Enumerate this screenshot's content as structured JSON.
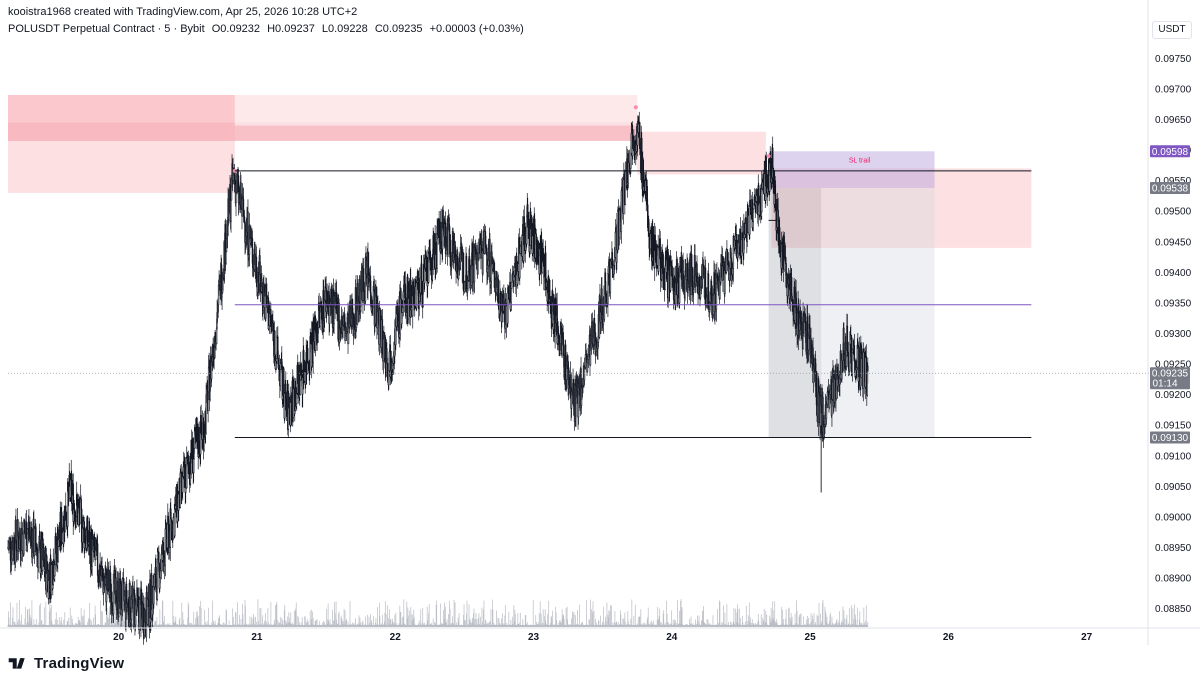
{
  "header": {
    "credit": "kooistra1968 created with TradingView.com, Apr 25, 2026 10:28 UTC+2",
    "symbol": "POLUSDT Perpetual Contract · 5 · Bybit",
    "open": "O0.09232",
    "high": "H0.09237",
    "low": "L0.09228",
    "close": "C0.09235",
    "change": "+0.00003 (+0.03%)"
  },
  "currency": "USDT",
  "brand": "TradingView",
  "colors": {
    "candle": "#131722",
    "supply_zone": "#f7b6bd",
    "supply_zone_light": "#fbdadd",
    "mid_line": "#7e57c2",
    "level_line": "#131722",
    "purple_badge": "#7e57c2",
    "gray_badge": "#787b86",
    "position_dark": "#9598a1",
    "position_light": "#d1d4dc"
  },
  "chart_data": {
    "type": "candlestick",
    "y_ticks": [
      0.0975,
      0.097,
      0.0965,
      0.096,
      0.0955,
      0.095,
      0.0945,
      0.094,
      0.0935,
      0.093,
      0.0925,
      0.092,
      0.0915,
      0.091,
      0.0905,
      0.09,
      0.0895,
      0.089,
      0.0885
    ],
    "y_tick_labels": [
      "0.09750",
      "0.09700",
      "0.09650",
      "0.09600",
      "0.09550",
      "0.09500",
      "0.09450",
      "0.09400",
      "0.09350",
      "0.09300",
      "0.09250",
      "0.09200",
      "0.09150",
      "0.09100",
      "0.09050",
      "0.09000",
      "0.08950",
      "0.08900",
      "0.08850"
    ],
    "ylim": [
      0.0882,
      0.0978
    ],
    "x_ticks": [
      "20",
      "21",
      "22",
      "23",
      "24",
      "25",
      "26",
      "27"
    ],
    "x_range_days": [
      19.2,
      27.4
    ],
    "price_path": [
      [
        19.2,
        0.0895
      ],
      [
        19.35,
        0.0898
      ],
      [
        19.5,
        0.089
      ],
      [
        19.65,
        0.0904
      ],
      [
        19.78,
        0.0896
      ],
      [
        19.9,
        0.0889
      ],
      [
        20.05,
        0.0886
      ],
      [
        20.2,
        0.0884
      ],
      [
        20.35,
        0.0896
      ],
      [
        20.5,
        0.0908
      ],
      [
        20.62,
        0.0915
      ],
      [
        20.72,
        0.0935
      ],
      [
        20.83,
        0.0956
      ],
      [
        20.95,
        0.0945
      ],
      [
        21.1,
        0.0932
      ],
      [
        21.22,
        0.0917
      ],
      [
        21.35,
        0.0925
      ],
      [
        21.5,
        0.0936
      ],
      [
        21.65,
        0.093
      ],
      [
        21.8,
        0.094
      ],
      [
        21.95,
        0.0925
      ],
      [
        22.05,
        0.0935
      ],
      [
        22.2,
        0.0938
      ],
      [
        22.35,
        0.0947
      ],
      [
        22.5,
        0.094
      ],
      [
        22.65,
        0.0944
      ],
      [
        22.8,
        0.0933
      ],
      [
        22.95,
        0.0948
      ],
      [
        23.05,
        0.0943
      ],
      [
        23.2,
        0.0928
      ],
      [
        23.3,
        0.0918
      ],
      [
        23.45,
        0.093
      ],
      [
        23.6,
        0.0945
      ],
      [
        23.72,
        0.0963
      ],
      [
        23.76,
        0.0962
      ],
      [
        23.85,
        0.0945
      ],
      [
        24.0,
        0.0938
      ],
      [
        24.15,
        0.094
      ],
      [
        24.3,
        0.0936
      ],
      [
        24.45,
        0.0943
      ],
      [
        24.6,
        0.095
      ],
      [
        24.72,
        0.0958
      ],
      [
        24.78,
        0.0945
      ],
      [
        24.88,
        0.0935
      ],
      [
        25.0,
        0.0928
      ],
      [
        25.05,
        0.092
      ],
      [
        25.1,
        0.0915
      ],
      [
        25.15,
        0.092
      ],
      [
        25.25,
        0.0928
      ],
      [
        25.35,
        0.0925
      ],
      [
        25.42,
        0.0922
      ]
    ],
    "lowest_wick": {
      "x": 25.08,
      "y": 0.0904
    },
    "horizontal_levels": [
      {
        "name": "range-high",
        "from": 20.84,
        "to": 26.6,
        "y": 0.09566,
        "color": "#131722"
      },
      {
        "name": "range-mid",
        "from": 20.84,
        "to": 26.6,
        "y": 0.09347,
        "color": "#7e57c2"
      },
      {
        "name": "range-low",
        "from": 20.84,
        "to": 26.6,
        "y": 0.0913,
        "color": "#131722"
      }
    ],
    "zones": [
      {
        "name": "supply-zone-left",
        "x0": 19.2,
        "x1": 20.84,
        "y0": 0.0953,
        "y1": 0.0969,
        "color": "#fbdadd"
      },
      {
        "name": "supply-zone-left-core",
        "x0": 19.2,
        "x1": 20.84,
        "y0": 0.09615,
        "y1": 0.0969,
        "color": "#f9c3c9"
      },
      {
        "name": "supply-zone-band",
        "x0": 19.2,
        "x1": 23.75,
        "y0": 0.09615,
        "y1": 0.09645,
        "color": "#f7b6bd"
      },
      {
        "name": "supply-zone-top",
        "x0": 20.84,
        "x1": 23.75,
        "y0": 0.0964,
        "y1": 0.0969,
        "color": "#fde4e6"
      },
      {
        "name": "supply-zone-mid",
        "x0": 23.75,
        "x1": 24.68,
        "y0": 0.0956,
        "y1": 0.0963,
        "color": "#fbdadd"
      },
      {
        "name": "supply-zone-right",
        "x0": 24.72,
        "x1": 26.6,
        "y0": 0.0944,
        "y1": 0.0957,
        "color": "#fbdadd"
      }
    ],
    "position_tool": {
      "x0": 24.7,
      "x_entry": 25.08,
      "x1": 25.9,
      "stop_y0": 0.09538,
      "stop_y1": 0.09598,
      "target_y0": 0.0913,
      "target_y1": 0.09538,
      "label": "SL trail",
      "label_color": "#e91e63"
    },
    "price_badges": [
      {
        "value": "0.09598",
        "color": "#7e57c2"
      },
      {
        "value": "0.09538",
        "color": "#787b86"
      },
      {
        "value": "0.09235",
        "color": "#787b86",
        "sub": "01:14"
      },
      {
        "value": "0.09130",
        "color": "#787b86"
      }
    ],
    "current_price": 0.09235
  }
}
